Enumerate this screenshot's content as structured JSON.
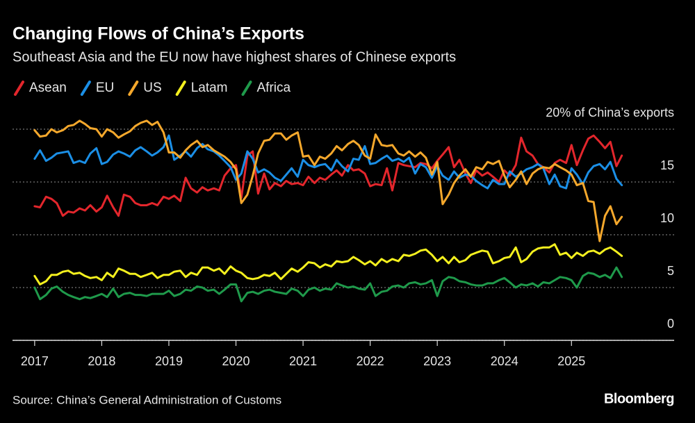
{
  "chart_data": {
    "type": "line",
    "title": "Changing Flows of China’s Exports",
    "subtitle": "Southeast Asia and the EU now have highest shares of Chinese exports",
    "source": "Source: China’s General Administration of Customs",
    "brand": "Bloomberg",
    "legend": "top",
    "grid": true,
    "xlim": [
      2016.67,
      2026.53
    ],
    "xticks": [
      2017,
      2018,
      2019,
      2020,
      2021,
      2022,
      2023,
      2024,
      2025
    ],
    "ylim": [
      0,
      21
    ],
    "yticks": [
      0,
      5,
      10,
      15,
      {
        "value": 20,
        "label": "20% of China’s exports"
      }
    ],
    "x": [
      2017,
      2017.08,
      2017.17,
      2017.25,
      2017.33,
      2017.42,
      2017.5,
      2017.58,
      2017.67,
      2017.75,
      2017.83,
      2017.92,
      2018,
      2018.08,
      2018.17,
      2018.25,
      2018.33,
      2018.42,
      2018.5,
      2018.58,
      2018.67,
      2018.75,
      2018.83,
      2018.92,
      2019,
      2019.08,
      2019.17,
      2019.25,
      2019.33,
      2019.42,
      2019.5,
      2019.58,
      2019.67,
      2019.75,
      2019.83,
      2019.92,
      2020,
      2020.08,
      2020.17,
      2020.25,
      2020.33,
      2020.42,
      2020.5,
      2020.58,
      2020.67,
      2020.75,
      2020.83,
      2020.92,
      2021,
      2021.08,
      2021.17,
      2021.25,
      2021.33,
      2021.42,
      2021.5,
      2021.58,
      2021.67,
      2021.75,
      2021.83,
      2021.92,
      2022,
      2022.08,
      2022.17,
      2022.25,
      2022.33,
      2022.42,
      2022.5,
      2022.58,
      2022.67,
      2022.75,
      2022.83,
      2022.92,
      2023,
      2023.08,
      2023.17,
      2023.25,
      2023.33,
      2023.42,
      2023.5,
      2023.58,
      2023.67,
      2023.75,
      2023.83,
      2023.92,
      2024,
      2024.08,
      2024.17,
      2024.25,
      2024.33,
      2024.42,
      2024.5,
      2024.58,
      2024.67,
      2024.75,
      2024.83,
      2024.92,
      2025,
      2025.08,
      2025.17,
      2025.25,
      2025.33,
      2025.42,
      2025.5,
      2025.58,
      2025.67,
      2025.75
    ],
    "series": [
      {
        "name": "Asean",
        "color": "#e3262c",
        "values": [
          12.7,
          12.6,
          13.6,
          13.4,
          13.0,
          11.8,
          12.2,
          12.1,
          12.5,
          12.3,
          12.8,
          12.2,
          12.6,
          13.7,
          12.6,
          11.8,
          13.8,
          13.6,
          13.0,
          12.8,
          12.8,
          13.0,
          12.8,
          13.6,
          13.4,
          13.7,
          13.2,
          15.4,
          14.4,
          14.0,
          14.5,
          14.2,
          14.4,
          14.2,
          15.6,
          16.3,
          16.6,
          13.5,
          17.5,
          17.9,
          13.9,
          15.8,
          14.3,
          14.9,
          14.6,
          15.1,
          14.8,
          14.9,
          14.7,
          15.5,
          14.9,
          15.4,
          15.2,
          15.7,
          16.1,
          15.6,
          16.6,
          16.1,
          16.2,
          15.8,
          14.6,
          14.8,
          14.7,
          16.3,
          14.2,
          16.8,
          16.6,
          16.5,
          16.4,
          16.8,
          16.7,
          16.3,
          17.0,
          17.6,
          18.3,
          16.4,
          17.1,
          15.8,
          14.9,
          16.1,
          15.6,
          15.9,
          15.5,
          15.0,
          16.1,
          15.6,
          16.6,
          19.2,
          17.9,
          17.5,
          16.7,
          16.4,
          15.9,
          16.8,
          17.1,
          16.8,
          18.5,
          16.6,
          18.0,
          19.1,
          19.4,
          18.8,
          18.2,
          18.8,
          16.5,
          17.5
        ]
      },
      {
        "name": "EU",
        "color": "#1b8fe6",
        "values": [
          17.2,
          18.0,
          17.0,
          17.3,
          17.7,
          17.8,
          17.9,
          16.8,
          17.0,
          16.8,
          17.7,
          18.2,
          16.7,
          16.9,
          17.6,
          17.9,
          17.7,
          17.4,
          18.0,
          18.3,
          17.9,
          17.5,
          17.8,
          18.3,
          19.4,
          17.1,
          17.5,
          17.9,
          17.4,
          18.2,
          18.6,
          18.1,
          17.9,
          17.5,
          17.0,
          16.4,
          15.2,
          15.8,
          17.9,
          17.2,
          15.9,
          16.2,
          15.9,
          15.4,
          15.1,
          15.7,
          16.3,
          15.5,
          17.1,
          16.6,
          16.4,
          16.6,
          16.7,
          16.1,
          17.1,
          16.5,
          16.0,
          17.2,
          17.1,
          18.4,
          16.7,
          16.8,
          17.2,
          17.5,
          17.0,
          17.2,
          16.9,
          17.3,
          15.8,
          16.7,
          16.4,
          15.4,
          16.5,
          15.6,
          15.2,
          16.0,
          15.4,
          15.7,
          15.6,
          15.1,
          14.7,
          14.4,
          15.2,
          14.8,
          14.8,
          16.0,
          15.5,
          15.8,
          16.2,
          16.4,
          16.7,
          16.3,
          14.8,
          15.7,
          14.6,
          14.4,
          16.3,
          15.7,
          14.8,
          15.9,
          16.5,
          16.7,
          16.2,
          16.9,
          15.3,
          14.7
        ]
      },
      {
        "name": "US",
        "color": "#f5a82c",
        "values": [
          19.9,
          19.3,
          19.4,
          20.0,
          19.7,
          19.9,
          20.3,
          20.4,
          20.8,
          20.5,
          20.1,
          20.0,
          19.3,
          20.0,
          19.7,
          19.2,
          19.5,
          19.8,
          20.3,
          20.6,
          20.8,
          20.4,
          20.7,
          19.7,
          17.8,
          17.8,
          17.3,
          18.0,
          18.5,
          18.9,
          18.3,
          18.5,
          18.0,
          17.7,
          17.4,
          16.9,
          16.2,
          13.0,
          13.8,
          15.6,
          17.7,
          18.9,
          19.0,
          19.6,
          19.6,
          19.0,
          19.4,
          19.7,
          17.4,
          17.5,
          16.6,
          17.4,
          17.2,
          17.7,
          18.4,
          18.0,
          18.6,
          18.9,
          18.5,
          17.5,
          17.2,
          19.5,
          18.5,
          18.4,
          18.5,
          17.7,
          17.5,
          17.9,
          17.4,
          17.8,
          17.3,
          15.7,
          16.9,
          12.9,
          13.8,
          14.9,
          15.6,
          16.2,
          15.5,
          16.4,
          16.2,
          16.9,
          16.7,
          17.0,
          15.6,
          14.5,
          15.2,
          16.0,
          14.8,
          15.8,
          16.2,
          16.4,
          16.3,
          16.7,
          16.4,
          16.1,
          15.7,
          14.7,
          14.9,
          13.2,
          13.1,
          9.4,
          11.8,
          12.7,
          11.0,
          11.7
        ]
      },
      {
        "name": "Latam",
        "color": "#f4f01e",
        "values": [
          6.1,
          5.3,
          5.6,
          6.2,
          6.2,
          6.5,
          6.6,
          6.3,
          6.4,
          6.1,
          5.9,
          6.0,
          5.7,
          6.4,
          6.0,
          6.8,
          6.6,
          6.3,
          6.3,
          6.0,
          6.2,
          6.4,
          5.9,
          6.2,
          6.2,
          6.5,
          6.6,
          6.0,
          6.4,
          6.2,
          6.9,
          6.9,
          6.6,
          6.8,
          6.3,
          7.0,
          6.6,
          6.4,
          5.9,
          5.8,
          5.9,
          6.2,
          6.1,
          6.4,
          5.8,
          6.3,
          6.8,
          6.5,
          6.9,
          7.4,
          7.3,
          6.9,
          7.2,
          7.0,
          7.5,
          7.4,
          7.5,
          7.9,
          7.6,
          7.2,
          7.5,
          7.1,
          7.7,
          7.4,
          7.7,
          7.5,
          8.1,
          8.0,
          8.2,
          8.5,
          8.6,
          8.1,
          7.5,
          7.9,
          7.3,
          7.9,
          7.4,
          7.6,
          8.1,
          8.3,
          8.5,
          8.4,
          7.3,
          7.5,
          7.8,
          7.9,
          8.8,
          7.4,
          7.7,
          8.4,
          8.7,
          8.8,
          8.8,
          9.1,
          8.1,
          8.3,
          7.8,
          8.3,
          8.0,
          8.4,
          8.5,
          8.2,
          8.6,
          8.8,
          8.4,
          8.0
        ]
      },
      {
        "name": "Africa",
        "color": "#1f9a4b",
        "values": [
          5.0,
          3.9,
          4.3,
          4.9,
          5.1,
          4.6,
          4.3,
          4.1,
          3.9,
          4.1,
          4.0,
          4.2,
          4.4,
          4.1,
          4.9,
          4.1,
          4.4,
          4.5,
          4.3,
          4.3,
          4.2,
          4.4,
          4.4,
          4.4,
          4.7,
          4.2,
          4.4,
          4.8,
          4.7,
          5.1,
          5.0,
          4.7,
          4.8,
          4.4,
          4.8,
          5.3,
          5.3,
          3.7,
          4.5,
          4.6,
          4.4,
          4.7,
          4.8,
          4.6,
          4.5,
          4.4,
          4.9,
          4.7,
          4.2,
          4.8,
          5.0,
          4.7,
          4.9,
          4.8,
          5.4,
          5.2,
          5.0,
          5.1,
          4.9,
          4.8,
          5.4,
          4.2,
          4.6,
          4.7,
          5.1,
          5.2,
          5.0,
          5.4,
          5.5,
          5.3,
          5.4,
          5.7,
          4.2,
          5.6,
          6.0,
          5.9,
          5.6,
          5.5,
          5.3,
          5.2,
          5.2,
          5.4,
          5.4,
          5.7,
          5.9,
          5.5,
          5.0,
          5.3,
          5.2,
          5.4,
          5.1,
          5.5,
          5.4,
          5.7,
          6.0,
          5.9,
          5.7,
          5.0,
          6.1,
          6.4,
          6.3,
          6.0,
          6.2,
          5.9,
          6.9,
          6.0
        ]
      }
    ]
  }
}
